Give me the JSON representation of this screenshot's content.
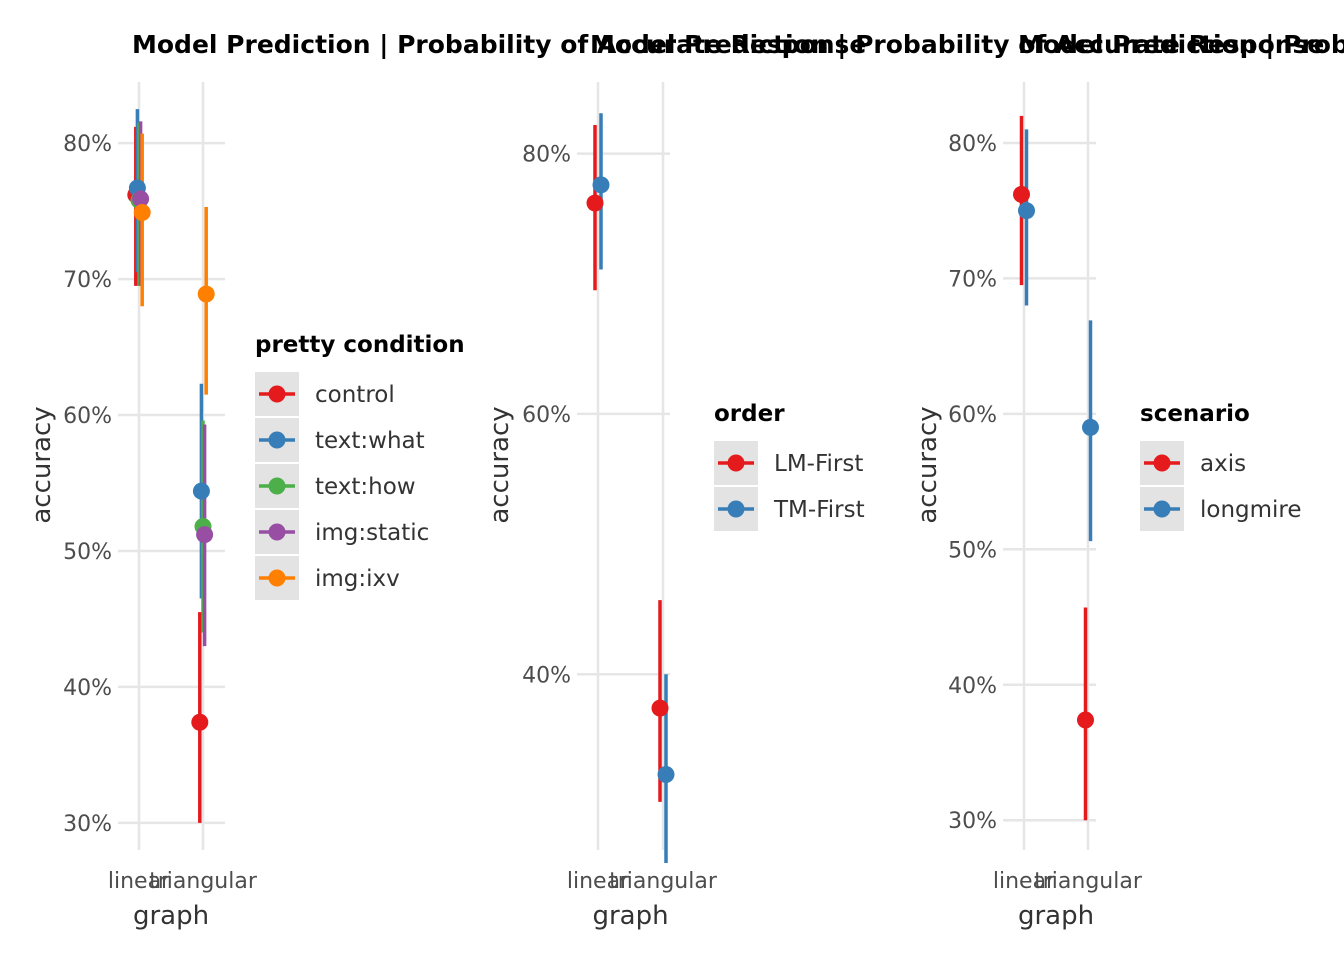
{
  "chart_data": [
    {
      "type": "scatter",
      "title": "Model Prediction | Probability of Accurate Response",
      "xlabel": "graph",
      "ylabel": "accuracy",
      "categories": [
        "linear",
        "triangular"
      ],
      "ylim": [
        0.28,
        0.845
      ],
      "yticks": [
        0.3,
        0.4,
        0.5,
        0.6,
        0.7,
        0.8
      ],
      "ytick_labels": [
        "30%",
        "40%",
        "50%",
        "60%",
        "70%",
        "80%"
      ],
      "grid": true,
      "legend_title": "pretty condition",
      "legend_placement": "right",
      "series": [
        {
          "name": "control",
          "color": "#e41a1c",
          "dodge": -1.0,
          "points": [
            {
              "x": "linear",
              "y": 0.762,
              "lo": 0.695,
              "hi": 0.812
            },
            {
              "x": "triangular",
              "y": 0.374,
              "lo": 0.3,
              "hi": 0.455
            }
          ]
        },
        {
          "name": "text:what",
          "color": "#377eb8",
          "dodge": -0.5,
          "points": [
            {
              "x": "linear",
              "y": 0.767,
              "lo": 0.705,
              "hi": 0.825
            },
            {
              "x": "triangular",
              "y": 0.544,
              "lo": 0.465,
              "hi": 0.623
            }
          ]
        },
        {
          "name": "text:how",
          "color": "#4daf4a",
          "dodge": 0.0,
          "points": [
            {
              "x": "linear",
              "y": 0.758,
              "lo": 0.695,
              "hi": 0.815
            },
            {
              "x": "triangular",
              "y": 0.518,
              "lo": 0.44,
              "hi": 0.596
            }
          ]
        },
        {
          "name": "img:static",
          "color": "#984ea3",
          "dodge": 0.5,
          "points": [
            {
              "x": "linear",
              "y": 0.759,
              "lo": 0.695,
              "hi": 0.816
            },
            {
              "x": "triangular",
              "y": 0.512,
              "lo": 0.43,
              "hi": 0.593
            }
          ]
        },
        {
          "name": "img:ixv",
          "color": "#ff7f00",
          "dodge": 1.0,
          "points": [
            {
              "x": "linear",
              "y": 0.749,
              "lo": 0.68,
              "hi": 0.807
            },
            {
              "x": "triangular",
              "y": 0.689,
              "lo": 0.615,
              "hi": 0.753
            }
          ]
        }
      ]
    },
    {
      "type": "scatter",
      "title": "Model Prediction | Probability of Accurate Response",
      "xlabel": "graph",
      "ylabel": "accuracy",
      "categories": [
        "linear",
        "triangular"
      ],
      "ylim": [
        0.265,
        0.855
      ],
      "yticks": [
        0.4,
        0.6,
        0.8
      ],
      "ytick_labels": [
        "40%",
        "60%",
        "80%"
      ],
      "grid": true,
      "legend_title": "order",
      "legend_placement": "right",
      "series": [
        {
          "name": "LM-First",
          "color": "#e41a1c",
          "dodge": -1.0,
          "points": [
            {
              "x": "linear",
              "y": 0.762,
              "lo": 0.695,
              "hi": 0.822
            },
            {
              "x": "triangular",
              "y": 0.374,
              "lo": 0.302,
              "hi": 0.457
            }
          ]
        },
        {
          "name": "TM-First",
          "color": "#377eb8",
          "dodge": 1.0,
          "points": [
            {
              "x": "linear",
              "y": 0.776,
              "lo": 0.711,
              "hi": 0.831
            },
            {
              "x": "triangular",
              "y": 0.323,
              "lo": 0.255,
              "hi": 0.4
            }
          ]
        }
      ]
    },
    {
      "type": "scatter",
      "title": "Model Prediction | Probability of Accurate Response",
      "xlabel": "graph",
      "ylabel": "accuracy",
      "categories": [
        "linear",
        "triangular"
      ],
      "ylim": [
        0.278,
        0.845
      ],
      "yticks": [
        0.3,
        0.4,
        0.5,
        0.6,
        0.7,
        0.8
      ],
      "ytick_labels": [
        "30%",
        "40%",
        "50%",
        "60%",
        "70%",
        "80%"
      ],
      "grid": true,
      "legend_title": "scenario",
      "legend_placement": "right",
      "series": [
        {
          "name": "axis",
          "color": "#e41a1c",
          "dodge": -1.0,
          "points": [
            {
              "x": "linear",
              "y": 0.762,
              "lo": 0.695,
              "hi": 0.82
            },
            {
              "x": "triangular",
              "y": 0.374,
              "lo": 0.3,
              "hi": 0.457
            }
          ]
        },
        {
          "name": "longmire",
          "color": "#377eb8",
          "dodge": 1.0,
          "points": [
            {
              "x": "linear",
              "y": 0.75,
              "lo": 0.68,
              "hi": 0.81
            },
            {
              "x": "triangular",
              "y": 0.59,
              "lo": 0.506,
              "hi": 0.669
            }
          ]
        }
      ]
    }
  ]
}
